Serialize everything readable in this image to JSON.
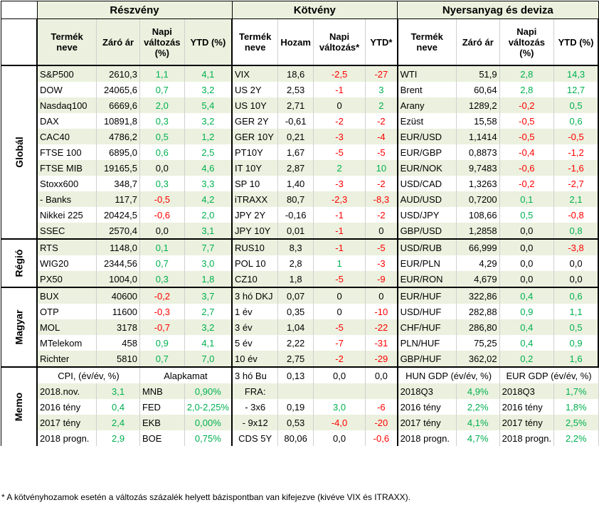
{
  "sections": {
    "equity": "Részvény",
    "bonds": "Kötvény",
    "commodity": "Nyersanyag és deviza"
  },
  "headers": {
    "eq": [
      "Termék neve",
      "Záró ár",
      "Napi változás (%)",
      "YTD (%)"
    ],
    "bd": [
      "Termék neve",
      "Hozam",
      "Napi változás*",
      "YTD*"
    ],
    "cm": [
      "Termék neve",
      "Záró ár",
      "Napi változás (%)",
      "YTD (%)"
    ]
  },
  "groups": [
    {
      "label": "Globál",
      "rows": [
        [
          [
            "S&P500",
            "2610,3",
            "1,1",
            "4,1"
          ],
          [
            "VIX",
            "18,6",
            "-2,5",
            "-27"
          ],
          [
            "WTI",
            "51,9",
            "2,8",
            "14,3"
          ]
        ],
        [
          [
            "DOW",
            "24065,6",
            "0,7",
            "3,2"
          ],
          [
            "US 2Y",
            "2,53",
            "-1",
            "3"
          ],
          [
            "Brent",
            "60,64",
            "2,8",
            "12,7"
          ]
        ],
        [
          [
            "Nasdaq100",
            "6669,6",
            "2,0",
            "5,4"
          ],
          [
            "US 10Y",
            "2,71",
            "0",
            "2"
          ],
          [
            "Arany",
            "1289,2",
            "-0,2",
            "0,5"
          ]
        ],
        [
          [
            "DAX",
            "10891,8",
            "0,3",
            "3,2"
          ],
          [
            "GER 2Y",
            "-0,61",
            "-2",
            "-2"
          ],
          [
            "Ezüst",
            "15,58",
            "-0,5",
            "0,6"
          ]
        ],
        [
          [
            "CAC40",
            "4786,2",
            "0,5",
            "1,2"
          ],
          [
            "GER 10Y",
            "0,21",
            "-3",
            "-4"
          ],
          [
            "EUR/USD",
            "1,1414",
            "-0,5",
            "-0,5"
          ]
        ],
        [
          [
            "FTSE 100",
            "6895,0",
            "0,6",
            "2,5"
          ],
          [
            "PT10Y",
            "1,67",
            "-5",
            "-5"
          ],
          [
            "EUR/GBP",
            "0,8873",
            "-0,4",
            "-1,2"
          ]
        ],
        [
          [
            "FTSE MIB",
            "19165,5",
            "0,0",
            "4,6"
          ],
          [
            "IT 10Y",
            "2,87",
            "2",
            "10"
          ],
          [
            "EUR/NOK",
            "9,7483",
            "-0,6",
            "-1,6"
          ]
        ],
        [
          [
            "Stoxx600",
            "348,7",
            "0,3",
            "3,3"
          ],
          [
            "SP 10",
            "1,40",
            "-3",
            "-2"
          ],
          [
            "USD/CAD",
            "1,3263",
            "-0,2",
            "-2,7"
          ]
        ],
        [
          [
            "  - Banks",
            "117,7",
            "-0,5",
            "4,2"
          ],
          [
            "iTRAXX",
            "80,7",
            "-2,3",
            "-8,3"
          ],
          [
            "AUD/USD",
            "0,7200",
            "0,1",
            "2,1"
          ]
        ],
        [
          [
            "Nikkei 225",
            "20424,5",
            "-0,6",
            "2,0"
          ],
          [
            "JPY 2Y",
            "-0,16",
            "-1",
            "-2"
          ],
          [
            "USD/JPY",
            "108,66",
            "0,5",
            "-0,8"
          ]
        ],
        [
          [
            "SSEC",
            "2570,4",
            "0,0",
            "3,1"
          ],
          [
            "JPY 10Y",
            "0,01",
            "-1",
            "0"
          ],
          [
            "GBP/USD",
            "1,2858",
            "0,0",
            "0,8"
          ]
        ]
      ]
    },
    {
      "label": "Régió",
      "rows": [
        [
          [
            "RTS",
            "1148,0",
            "0,1",
            "7,7"
          ],
          [
            "RUS10",
            "8,3",
            "-1",
            "-5"
          ],
          [
            "USD/RUB",
            "66,999",
            "0,0",
            "-3,8"
          ]
        ],
        [
          [
            "WIG20",
            "2344,56",
            "0,7",
            "3,0"
          ],
          [
            "POL 10",
            "2,8",
            "1",
            "-3"
          ],
          [
            "EUR/PLN",
            "4,29",
            "0,0",
            "0,0"
          ]
        ],
        [
          [
            "PX50",
            "1004,0",
            "0,3",
            "1,8"
          ],
          [
            "CZ10",
            "1,8",
            "-5",
            "-9"
          ],
          [
            "EUR/RON",
            "4,679",
            "0,0",
            "0,0"
          ]
        ]
      ]
    },
    {
      "label": "Magyar",
      "rows": [
        [
          [
            "BUX",
            "40600",
            "-0,2",
            "3,7"
          ],
          [
            "3 hó DKJ",
            "0,07",
            "0",
            "0"
          ],
          [
            "EUR/HUF",
            "322,86",
            "0,4",
            "0,6"
          ]
        ],
        [
          [
            "OTP",
            "11600",
            "-0,3",
            "2,7"
          ],
          [
            "1 év",
            "0,35",
            "0",
            "-10"
          ],
          [
            "USD/HUF",
            "282,88",
            "0,9",
            "1,1"
          ]
        ],
        [
          [
            "MOL",
            "3178",
            "-0,7",
            "3,2"
          ],
          [
            "3 év",
            "1,04",
            "-5",
            "-22"
          ],
          [
            "CHF/HUF",
            "286,80",
            "0,4",
            "0,5"
          ]
        ],
        [
          [
            "MTelekom",
            "458",
            "0,9",
            "4,1"
          ],
          [
            "5 év",
            "2,22",
            "-7",
            "-31"
          ],
          [
            "PLN/HUF",
            "75,25",
            "0,4",
            "0,9"
          ]
        ],
        [
          [
            "Richter",
            "5810",
            "0,7",
            "7,0"
          ],
          [
            "10 év",
            "2,75",
            "-2",
            "-29"
          ],
          [
            "GBP/HUF",
            "362,02",
            "0,2",
            "1,6"
          ]
        ]
      ]
    }
  ],
  "memo": {
    "label": "Memo",
    "cpi_title": "CPI, (év/év, %)",
    "rate_title": "Alapkamat",
    "hun_title": "HUN GDP (év/év, %)",
    "eur_title": "EUR GDP (év/év, %)",
    "header_bond": [
      "3 hó Bu",
      "0,13",
      "0,0",
      "0,0"
    ],
    "rows": [
      {
        "cpi": [
          "2018.nov.",
          "3,1"
        ],
        "rate": [
          "MNB",
          "0,90%"
        ],
        "bond": [
          "FRA:",
          "",
          "",
          ""
        ],
        "hun": [
          "2018Q3",
          "4,9%"
        ],
        "eur": [
          "2018Q3",
          "1,7%"
        ]
      },
      {
        "cpi": [
          "2016 tény",
          "0,4"
        ],
        "rate": [
          "FED",
          "2,0-2,25%"
        ],
        "bond": [
          "- 3x6",
          "0,19",
          "3,0",
          "-6"
        ],
        "hun": [
          "2016 tény",
          "2,2%"
        ],
        "eur": [
          "2016 tény",
          "1,8%"
        ]
      },
      {
        "cpi": [
          "2017 tény",
          "2,4"
        ],
        "rate": [
          "EKB",
          "0,00%"
        ],
        "bond": [
          "- 9x12",
          "0,53",
          "-4,0",
          "-20"
        ],
        "hun": [
          "2017 tény",
          "4,1%"
        ],
        "eur": [
          "2017 tény",
          "2,5%"
        ]
      },
      {
        "cpi": [
          "2018 progn.",
          "2,9"
        ],
        "rate": [
          "BOE",
          "0,75%"
        ],
        "bond": [
          "CDS 5Y",
          "80,06",
          "0,0",
          "-0,6"
        ],
        "hun": [
          "2018 progn.",
          "4,7%"
        ],
        "eur": [
          "2018 progn.",
          "2,2%"
        ]
      }
    ]
  },
  "footnote": "* A kötvényhozamok esetén a változás százalék helyett bázispontban van kifejezve (kivéve VIX és ITRAXX)."
}
